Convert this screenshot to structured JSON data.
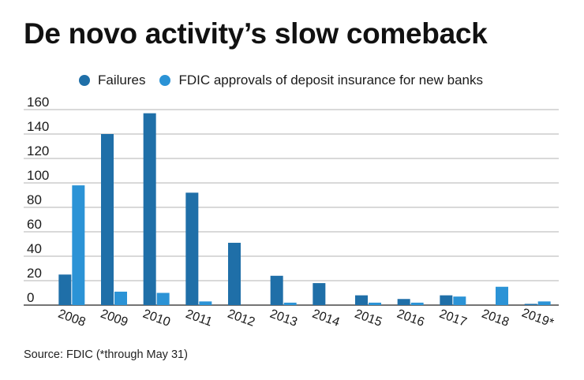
{
  "title": "De novo activity’s slow comeback",
  "source": "Source: FDIC (*through May 31)",
  "colors": {
    "failures": "#1f6fa8",
    "approvals": "#2b93d6",
    "grid": "#9a9a9a",
    "axis": "#222222"
  },
  "chart_data": {
    "type": "bar",
    "title": "De novo activity’s slow comeback",
    "xlabel": "",
    "ylabel": "",
    "ylim": [
      0,
      160
    ],
    "yticks": [
      0,
      20,
      40,
      60,
      80,
      100,
      120,
      140,
      160
    ],
    "yticks_text": [
      "0",
      "20",
      "40",
      "60",
      "80",
      "100",
      "120",
      "140",
      "160"
    ],
    "grid": true,
    "legend": "top",
    "categories": [
      "2008",
      "2009",
      "2010",
      "2011",
      "2012",
      "2013",
      "2014",
      "2015",
      "2016",
      "2017",
      "2018",
      "2019*"
    ],
    "series": [
      {
        "name": "Failures",
        "color": "#1f6fa8",
        "values": [
          25,
          140,
          157,
          92,
          51,
          24,
          18,
          8,
          5,
          8,
          0,
          1
        ]
      },
      {
        "name": "FDIC approvals of deposit insurance for new banks",
        "color": "#2b93d6",
        "values": [
          98,
          11,
          10,
          3,
          0,
          2,
          0,
          2,
          2,
          7,
          15,
          3
        ]
      }
    ]
  }
}
